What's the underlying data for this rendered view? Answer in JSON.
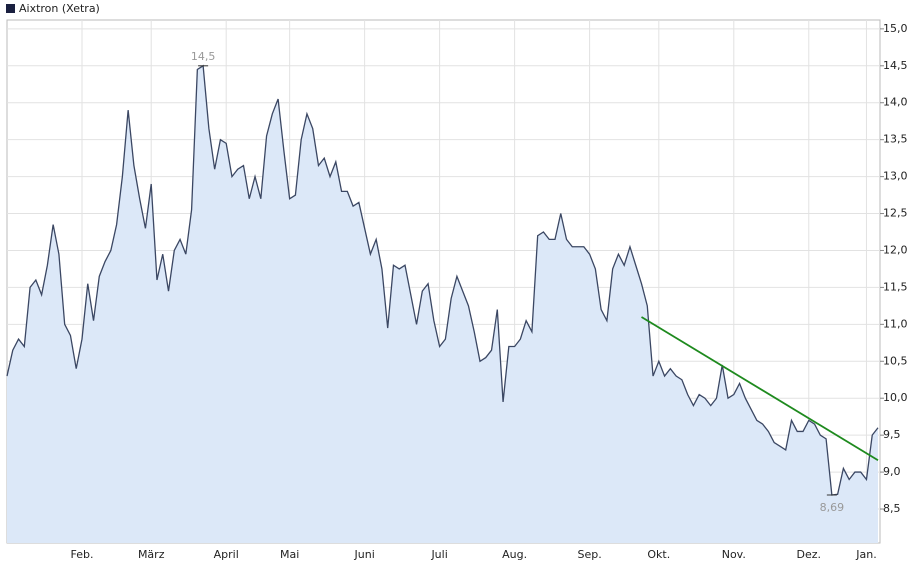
{
  "chart_data": {
    "type": "area",
    "title": "Aixtron (Xetra)",
    "categories": [
      null,
      null,
      null,
      null,
      null,
      null,
      null,
      null,
      null,
      null,
      null,
      null,
      null,
      "Feb.",
      null,
      null,
      null,
      null,
      null,
      null,
      null,
      null,
      null,
      null,
      null,
      "März",
      null,
      null,
      null,
      null,
      null,
      null,
      null,
      null,
      null,
      null,
      null,
      null,
      "April",
      null,
      null,
      null,
      null,
      null,
      null,
      null,
      null,
      null,
      null,
      "Mai",
      null,
      null,
      null,
      null,
      null,
      null,
      null,
      null,
      null,
      null,
      null,
      null,
      "Juni",
      null,
      null,
      null,
      null,
      null,
      null,
      null,
      null,
      null,
      null,
      null,
      null,
      "Juli",
      null,
      null,
      null,
      null,
      null,
      null,
      null,
      null,
      null,
      null,
      null,
      null,
      "Aug.",
      null,
      null,
      null,
      null,
      null,
      null,
      null,
      null,
      null,
      null,
      null,
      null,
      "Sep.",
      null,
      null,
      null,
      null,
      null,
      null,
      null,
      null,
      null,
      null,
      null,
      "Okt.",
      null,
      null,
      null,
      null,
      null,
      null,
      null,
      null,
      null,
      null,
      null,
      null,
      "Nov.",
      null,
      null,
      null,
      null,
      null,
      null,
      null,
      null,
      null,
      null,
      null,
      null,
      "Dez.",
      null,
      null,
      null,
      null,
      null,
      null,
      null,
      null,
      null,
      "Jan.",
      null,
      null
    ],
    "values": [
      10.3,
      10.65,
      10.8,
      10.7,
      11.5,
      11.6,
      11.4,
      11.8,
      12.35,
      11.95,
      11.0,
      10.85,
      10.4,
      10.8,
      11.55,
      11.05,
      11.65,
      11.85,
      12.0,
      12.35,
      13.0,
      13.9,
      13.15,
      12.7,
      12.3,
      12.9,
      11.6,
      11.95,
      11.45,
      12.0,
      12.15,
      11.95,
      12.55,
      14.45,
      14.5,
      13.65,
      13.1,
      13.5,
      13.45,
      13.0,
      13.1,
      13.15,
      12.7,
      13.0,
      12.7,
      13.55,
      13.85,
      14.05,
      13.35,
      12.7,
      12.75,
      13.5,
      13.85,
      13.65,
      13.15,
      13.25,
      13.0,
      13.2,
      12.8,
      12.8,
      12.6,
      12.65,
      12.3,
      11.95,
      12.15,
      11.75,
      10.95,
      11.8,
      11.75,
      11.8,
      11.4,
      11.0,
      11.45,
      11.55,
      11.05,
      10.7,
      10.8,
      11.35,
      11.65,
      11.45,
      11.25,
      10.9,
      10.5,
      10.55,
      10.65,
      11.2,
      9.95,
      10.7,
      10.7,
      10.8,
      11.05,
      10.9,
      12.2,
      12.25,
      12.15,
      12.15,
      12.5,
      12.15,
      12.05,
      12.05,
      12.05,
      11.95,
      11.75,
      11.2,
      11.05,
      11.75,
      11.95,
      11.8,
      12.05,
      11.8,
      11.55,
      11.25,
      10.3,
      10.5,
      10.3,
      10.4,
      10.3,
      10.25,
      10.05,
      9.9,
      10.05,
      10.0,
      9.9,
      10.0,
      10.45,
      10.0,
      10.05,
      10.2,
      10.0,
      9.85,
      9.7,
      9.65,
      9.55,
      9.4,
      9.35,
      9.3,
      9.7,
      9.55,
      9.55,
      9.7,
      9.65,
      9.5,
      9.45,
      8.69,
      8.7,
      9.05,
      8.9,
      9.0,
      9.0,
      8.9,
      9.5,
      9.6
    ],
    "color": "#3b4763",
    "fill": "#dce8f8",
    "ylim": [
      8.04,
      15.12
    ],
    "yticks": [
      {
        "value": 8.5,
        "label": "8,5"
      },
      {
        "value": 9.0,
        "label": "9,0"
      },
      {
        "value": 9.5,
        "label": "9,5"
      },
      {
        "value": 10.0,
        "label": "10,0"
      },
      {
        "value": 10.5,
        "label": "10,5"
      },
      {
        "value": 11.0,
        "label": "11,0"
      },
      {
        "value": 11.5,
        "label": "11,5"
      },
      {
        "value": 12.0,
        "label": "12,0"
      },
      {
        "value": 12.5,
        "label": "12,5"
      },
      {
        "value": 13.0,
        "label": "13,0"
      },
      {
        "value": 13.5,
        "label": "13,5"
      },
      {
        "value": 14.0,
        "label": "14,0"
      },
      {
        "value": 14.5,
        "label": "14,5"
      },
      {
        "value": 15.0,
        "label": "15,0"
      }
    ],
    "grid": true,
    "annotations": [
      {
        "text": "14,5",
        "value": 14.5
      },
      {
        "text": "8,69",
        "value": 8.69
      }
    ],
    "trendline": {
      "color": "#1e8a1e",
      "start": [
        110,
        11.1
      ],
      "end": [
        151,
        9.16
      ]
    }
  }
}
